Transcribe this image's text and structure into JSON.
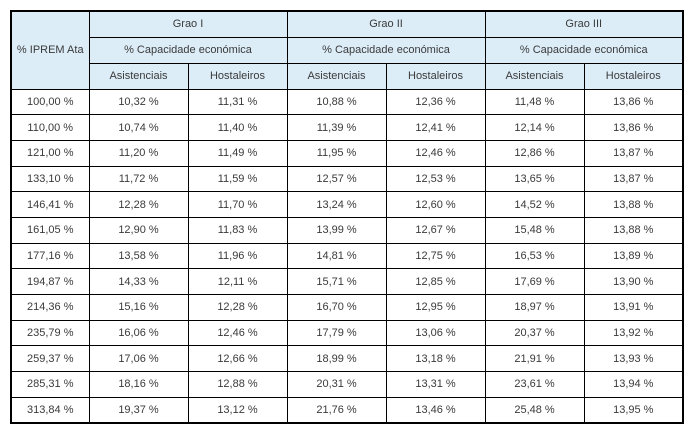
{
  "table": {
    "corner_header": "% IPREM Ata",
    "groups": [
      {
        "label": "Grao I",
        "subheader": "% Capacidade económica"
      },
      {
        "label": "Grao II",
        "subheader": "% Capacidade económica"
      },
      {
        "label": "Grao III",
        "subheader": "% Capacidade económica"
      }
    ],
    "col_headers": [
      "Asistenciais",
      "Hostaleiros",
      "Asistenciais",
      "Hostaleiros",
      "Asistenciais",
      "Hostaleiros"
    ],
    "rows": [
      [
        "100,00 %",
        "10,32 %",
        "11,31 %",
        "10,88 %",
        "12,36 %",
        "11,48 %",
        "13,86 %"
      ],
      [
        "110,00 %",
        "10,74 %",
        "11,40 %",
        "11,39 %",
        "12,41 %",
        "12,14 %",
        "13,86 %"
      ],
      [
        "121,00 %",
        "11,20 %",
        "11,49 %",
        "11,95 %",
        "12,46 %",
        "12,86 %",
        "13,87 %"
      ],
      [
        "133,10 %",
        "11,72 %",
        "11,59 %",
        "12,57 %",
        "12,53 %",
        "13,65 %",
        "13,87 %"
      ],
      [
        "146,41 %",
        "12,28 %",
        "11,70 %",
        "13,24 %",
        "12,60 %",
        "14,52 %",
        "13,88 %"
      ],
      [
        "161,05 %",
        "12,90 %",
        "11,83 %",
        "13,99 %",
        "12,67 %",
        "15,48 %",
        "13,88 %"
      ],
      [
        "177,16 %",
        "13,58 %",
        "11,96 %",
        "14,81 %",
        "12,75 %",
        "16,53 %",
        "13,89 %"
      ],
      [
        "194,87 %",
        "14,33 %",
        "12,11 %",
        "15,71 %",
        "12,85 %",
        "17,69 %",
        "13,90 %"
      ],
      [
        "214,36 %",
        "15,16 %",
        "12,28 %",
        "16,70 %",
        "12,95 %",
        "18,97 %",
        "13,91 %"
      ],
      [
        "235,79 %",
        "16,06 %",
        "12,46 %",
        "17,79 %",
        "13,06 %",
        "20,37 %",
        "13,92 %"
      ],
      [
        "259,37 %",
        "17,06 %",
        "12,66 %",
        "18,99 %",
        "13,18 %",
        "21,91 %",
        "13,93 %"
      ],
      [
        "285,31 %",
        "18,16 %",
        "12,88 %",
        "20,31 %",
        "13,31 %",
        "23,61 %",
        "13,94 %"
      ],
      [
        "313,84 %",
        "19,37 %",
        "13,12 %",
        "21,76 %",
        "13,46 %",
        "25,48 %",
        "13,95 %"
      ]
    ]
  },
  "colors": {
    "header_bg": "#dcedf8",
    "border": "#000000",
    "text": "#3a3a3a",
    "page_bg": "#ffffff"
  }
}
